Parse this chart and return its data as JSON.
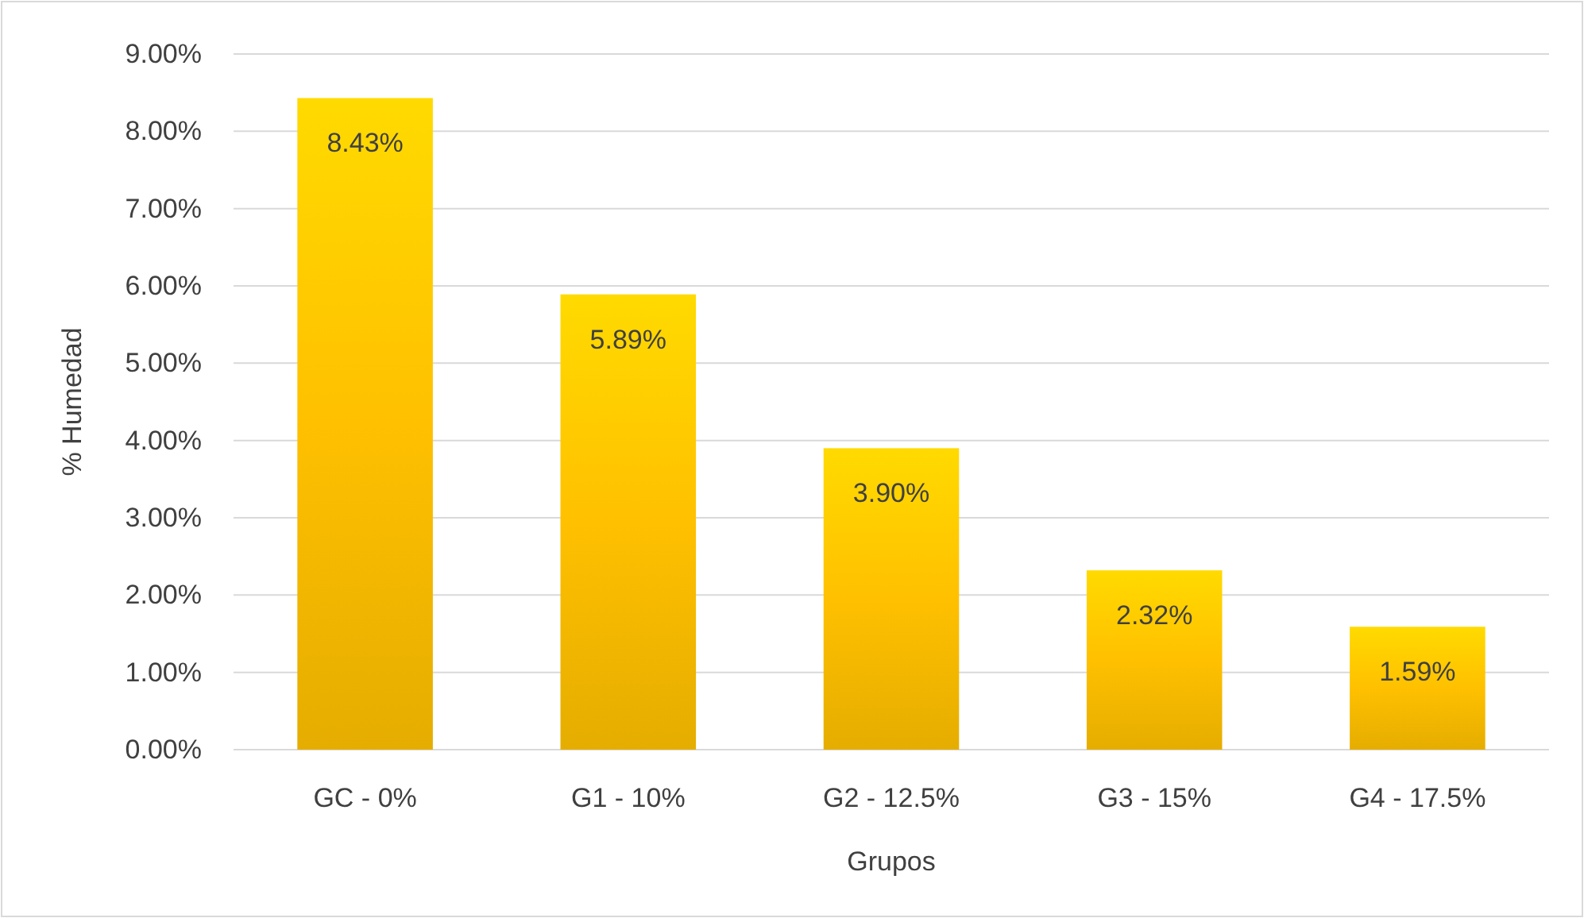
{
  "chart_data": {
    "type": "bar",
    "xlabel": "Grupos",
    "ylabel": "% Humedad",
    "categories": [
      "GC - 0%",
      "G1 - 10%",
      "G2 - 12.5%",
      "G3 - 15%",
      "G4 - 17.5%"
    ],
    "values": [
      8.43,
      5.89,
      3.9,
      2.32,
      1.59
    ],
    "value_labels": [
      "8.43%",
      "5.89%",
      "3.90%",
      "2.32%",
      "1.59%"
    ],
    "color": "#ffc000",
    "ylim": [
      0,
      9
    ],
    "yticks": [
      {
        "value": 0,
        "label": "0.00%"
      },
      {
        "value": 1,
        "label": "1.00%"
      },
      {
        "value": 2,
        "label": "2.00%"
      },
      {
        "value": 3,
        "label": "3.00%"
      },
      {
        "value": 4,
        "label": "4.00%"
      },
      {
        "value": 5,
        "label": "5.00%"
      },
      {
        "value": 6,
        "label": "6.00%"
      },
      {
        "value": 7,
        "label": "7.00%"
      },
      {
        "value": 8,
        "label": "8.00%"
      },
      {
        "value": 9,
        "label": "9.00%"
      }
    ],
    "grid": "y"
  }
}
